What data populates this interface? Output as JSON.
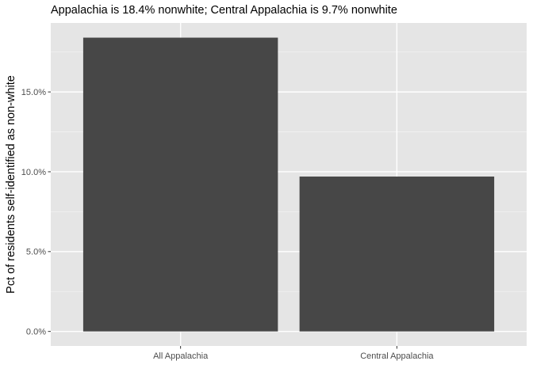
{
  "chart_data": {
    "type": "bar",
    "title": "Appalachia is 18.4% nonwhite; Central Appalachia is 9.7% nonwhite",
    "xlabel": "",
    "ylabel": "Pct of residents self-identified as non-white",
    "categories": [
      "All Appalachia",
      "Central Appalachia"
    ],
    "values": [
      0.184,
      0.097
    ],
    "ylim": [
      -0.0091,
      0.1932
    ],
    "yticks": [
      0,
      0.05,
      0.1,
      0.15
    ],
    "ytick_labels": [
      "0.0%",
      "5.0%",
      "10.0%",
      "15.0%"
    ],
    "grid": true,
    "legend": "none",
    "colors": {
      "bar": "#474747",
      "panel": "#e5e5e5",
      "grid_major": "#ffffff",
      "tick_text": "#4d4d4d",
      "tick_mark": "#333333"
    }
  }
}
